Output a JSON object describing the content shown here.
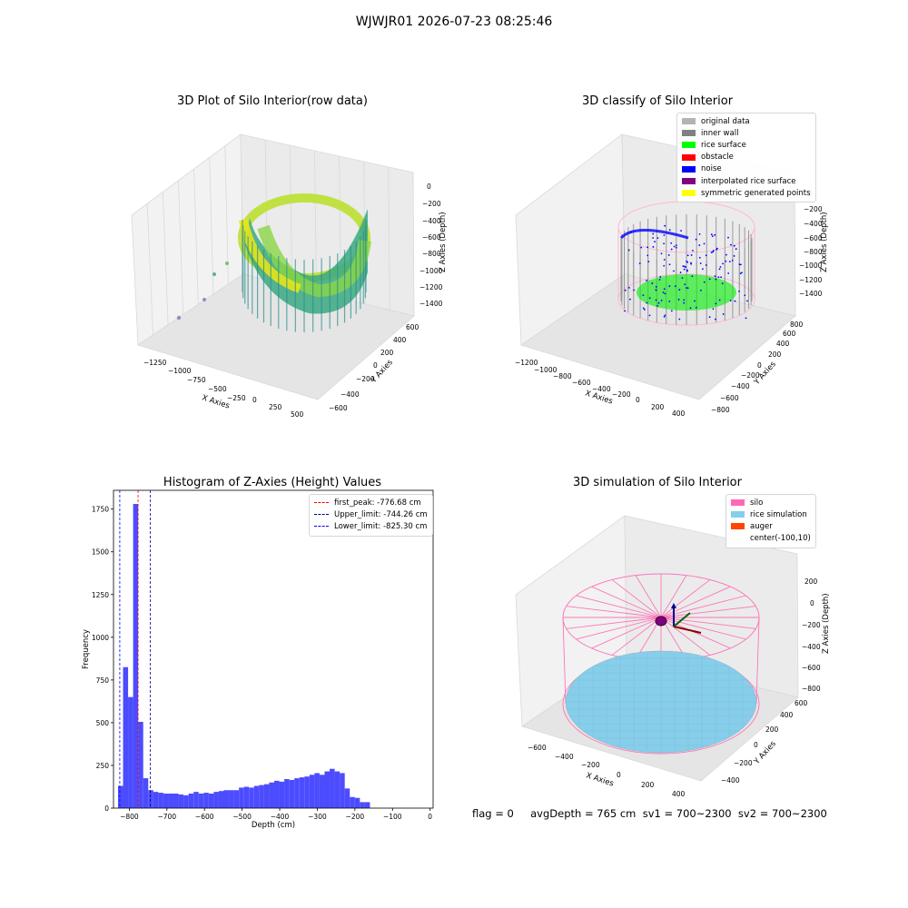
{
  "suptitle": "WJWJR01 2026-07-23 08:25:46",
  "status_line": "flag = 0     avgDepth = 765 cm  sv1 = 700~2300  sv2 = 700~2300",
  "chart_data": [
    {
      "type": "scatter",
      "title": "3D Plot of Silo Interior(row data)",
      "xlabel": "X Axies",
      "ylabel": "Y Axies",
      "zlabel": "Z Axies (Depth)",
      "x_ticks": [
        "−1250",
        "−1000",
        "−750",
        "−500",
        "−250",
        "0",
        "250",
        "500"
      ],
      "y_ticks": [
        "−600",
        "−400",
        "−200",
        "0",
        "200",
        "400",
        "600"
      ],
      "z_ticks": [
        "0",
        "−200",
        "−400",
        "−600",
        "−800",
        "−1000",
        "−1200",
        "−1400"
      ],
      "colormap": "viridis"
    },
    {
      "type": "scatter",
      "title": "3D classify of Silo Interior",
      "xlabel": "X Axies",
      "ylabel": "Y Axies",
      "zlabel": "Z Axies (Depth)",
      "x_ticks": [
        "−1200",
        "−1000",
        "−800",
        "−600",
        "−400",
        "−200",
        "0",
        "200",
        "400"
      ],
      "y_ticks": [
        "−800",
        "−600",
        "−400",
        "−200",
        "0",
        "200",
        "400",
        "600",
        "800"
      ],
      "z_ticks": [
        "0",
        "−200",
        "−400",
        "−600",
        "−800",
        "−1000",
        "−1200",
        "−1400"
      ],
      "legend": [
        {
          "label": "original data",
          "color": "#b3b3b3"
        },
        {
          "label": "inner wall",
          "color": "#808080"
        },
        {
          "label": "rice surface",
          "color": "#00ff00"
        },
        {
          "label": "obstacle",
          "color": "#ff0000"
        },
        {
          "label": "noise",
          "color": "#0000ff"
        },
        {
          "label": "interpolated rice surface",
          "color": "#800080"
        },
        {
          "label": "symmetric generated points",
          "color": "#ffff00"
        }
      ]
    },
    {
      "type": "bar",
      "title": "Histogram of Z-Axies (Height) Values",
      "xlabel": "Depth (cm)",
      "ylabel": "Frequency",
      "xlim": [
        -842,
        8
      ],
      "ylim": [
        0,
        1860
      ],
      "x_ticks": [
        -800,
        -700,
        -600,
        -500,
        -400,
        -300,
        -200,
        -100,
        0
      ],
      "x_tick_labels": [
        "−800",
        "−700",
        "−600",
        "−500",
        "−400",
        "−300",
        "−200",
        "−100",
        "0"
      ],
      "y_ticks": [
        0,
        250,
        500,
        750,
        1000,
        1250,
        1500,
        1750
      ],
      "y_tick_labels": [
        "0",
        "250",
        "500",
        "750",
        "1000",
        "1250",
        "1500",
        "1750"
      ],
      "bar_color": "#4c4cff",
      "bins_start": -830,
      "bin_width": 13.4,
      "values": [
        130,
        825,
        650,
        1780,
        505,
        175,
        105,
        95,
        90,
        85,
        85,
        85,
        80,
        75,
        85,
        95,
        85,
        90,
        85,
        95,
        100,
        105,
        105,
        105,
        120,
        125,
        120,
        130,
        135,
        140,
        150,
        160,
        155,
        170,
        165,
        175,
        180,
        185,
        195,
        205,
        195,
        215,
        230,
        215,
        205,
        115,
        65,
        60,
        35,
        35
      ],
      "vlines": [
        {
          "label": "first_peak: -776.68 cm",
          "x": -776.68,
          "color": "#ff0000"
        },
        {
          "label": "Upper_limit: -744.26 cm",
          "x": -744.26,
          "color": "#00008b"
        },
        {
          "label": "Lower_limit: -825.30 cm",
          "x": -825.3,
          "color": "#0000ff"
        }
      ]
    },
    {
      "type": "scatter",
      "title": "3D simulation of Silo Interior",
      "xlabel": "X Axies",
      "ylabel": "Y Axies",
      "zlabel": "Z Axies (Depth)",
      "x_ticks": [
        "−600",
        "−400",
        "−200",
        "0",
        "200",
        "400"
      ],
      "y_ticks": [
        "−400",
        "−200",
        "0",
        "200",
        "400",
        "600"
      ],
      "z_ticks": [
        "200",
        "0",
        "−200",
        "−400",
        "−600",
        "−800"
      ],
      "legend": [
        {
          "label": "silo",
          "color": "#ff69b4"
        },
        {
          "label": "rice simulation",
          "color": "#87ceeb"
        },
        {
          "label": "auger",
          "color": "#ff4500"
        },
        {
          "label": "center(-100,10)",
          "color": "none"
        }
      ]
    }
  ]
}
